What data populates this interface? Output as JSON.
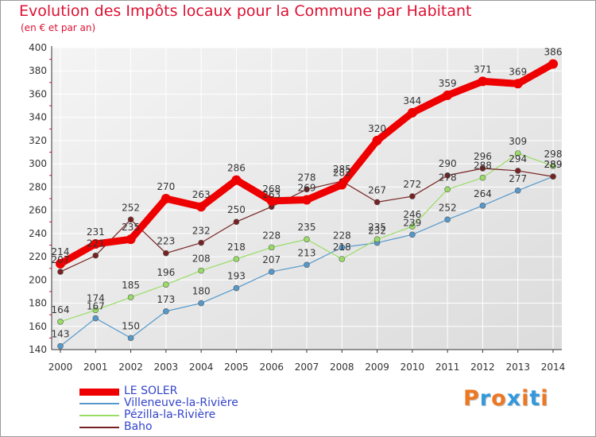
{
  "chart_data": {
    "type": "line",
    "title": "Evolution des Impôts locaux pour la Commune par Habitant",
    "subtitle": "(en € et par an)",
    "categories": [
      "2000",
      "2001",
      "2002",
      "2003",
      "2004",
      "2005",
      "2006",
      "2007",
      "2008",
      "2009",
      "2010",
      "2011",
      "2012",
      "2013",
      "2014"
    ],
    "ylim": [
      140,
      400
    ],
    "yticks": [
      140,
      160,
      180,
      200,
      220,
      240,
      260,
      280,
      300,
      320,
      340,
      360,
      380,
      400
    ],
    "grid": true,
    "series": [
      {
        "name": "LE SOLER",
        "color": "#ee0000",
        "values": [
          214,
          231,
          235,
          270,
          263,
          286,
          268,
          269,
          282,
          320,
          344,
          359,
          371,
          369,
          386
        ]
      },
      {
        "name": "Villeneuve-la-Rivière",
        "color": "#5599cc",
        "values": [
          143,
          167,
          150,
          173,
          180,
          193,
          207,
          213,
          228,
          232,
          239,
          252,
          264,
          277,
          289
        ]
      },
      {
        "name": "Pézilla-la-Rivière",
        "color": "#99dd66",
        "values": [
          164,
          174,
          185,
          196,
          208,
          218,
          228,
          235,
          218,
          235,
          246,
          278,
          288,
          309,
          298
        ]
      },
      {
        "name": "Baho",
        "color": "#772222",
        "values": [
          207,
          221,
          252,
          223,
          232,
          250,
          263,
          278,
          285,
          267,
          272,
          290,
          296,
          294,
          289
        ]
      }
    ]
  },
  "logo": {
    "letters": [
      "P",
      "r",
      "o",
      "x",
      "i",
      "t",
      "i"
    ],
    "colors": [
      "#ee7722",
      "#3399dd",
      "#ee7722",
      "#3399dd",
      "#ee7722",
      "#3399dd",
      "#ee7722"
    ]
  }
}
